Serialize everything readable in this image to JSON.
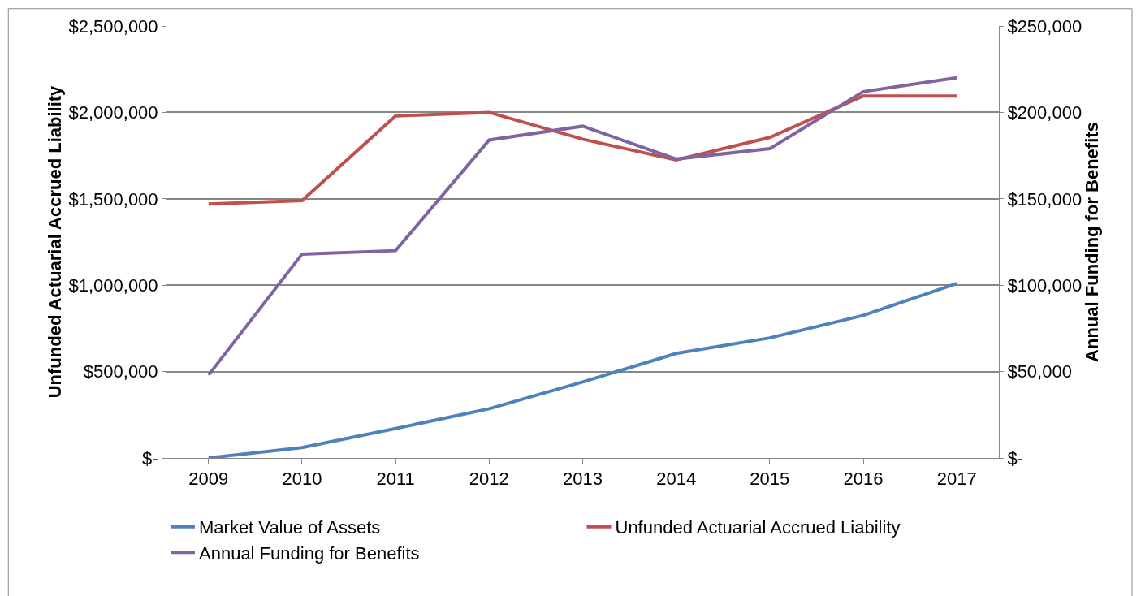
{
  "chart_data": {
    "type": "line",
    "categories": [
      "2009",
      "2010",
      "2011",
      "2012",
      "2013",
      "2014",
      "2015",
      "2016",
      "2017"
    ],
    "series": [
      {
        "name": "Market Value of Assets",
        "color": "#4f81bd",
        "values": [
          0,
          60000,
          170000,
          285000,
          440000,
          605000,
          695000,
          825000,
          1010000
        ]
      },
      {
        "name": "Unfunded Actuarial Accrued Liability",
        "color": "#c0504d",
        "values": [
          1470000,
          1490000,
          1980000,
          2000000,
          1845000,
          1725000,
          1855000,
          2095000,
          2095000
        ]
      },
      {
        "name": "Annual Funding for Benefits",
        "color": "#8064a2",
        "axis": "y2",
        "values": [
          48000,
          118000,
          120000,
          184000,
          192000,
          173000,
          179000,
          212000,
          220000
        ]
      }
    ],
    "ylabel": "Unfunded Actuarial Accrued Liability",
    "y2label": "Annual Funding for Benefits",
    "ylim": [
      0,
      2500000
    ],
    "yticks": [
      {
        "value": 0,
        "label": "$-"
      },
      {
        "value": 500000,
        "label": "$500,000"
      },
      {
        "value": 1000000,
        "label": "$1,000,000"
      },
      {
        "value": 1500000,
        "label": "$1,500,000"
      },
      {
        "value": 2000000,
        "label": "$2,000,000"
      },
      {
        "value": 2500000,
        "label": "$2,500,000"
      }
    ],
    "y2lim": [
      0,
      250000
    ],
    "y2ticks": [
      {
        "value": 0,
        "label": "$-"
      },
      {
        "value": 50000,
        "label": "$50,000"
      },
      {
        "value": 100000,
        "label": "$100,000"
      },
      {
        "value": 150000,
        "label": "$150,000"
      },
      {
        "value": 200000,
        "label": "$200,000"
      },
      {
        "value": 250000,
        "label": "$250,000"
      }
    ],
    "grid": "y",
    "legend": "bottom",
    "marker": "none",
    "line_style": "solid"
  }
}
